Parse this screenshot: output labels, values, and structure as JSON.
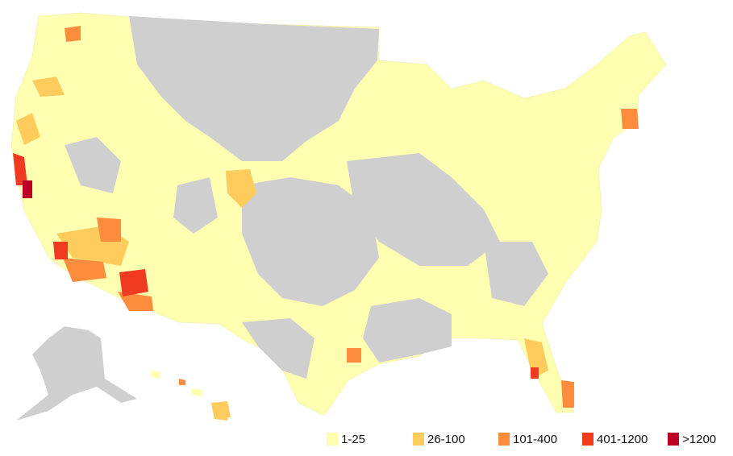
{
  "legend": {
    "items": [
      {
        "label": "1-25",
        "color": "#ffffb2"
      },
      {
        "label": "26-100",
        "color": "#fecc5c"
      },
      {
        "label": "101-400",
        "color": "#fd8d3c"
      },
      {
        "label": "401-1200",
        "color": "#f03b20"
      },
      {
        "label": ">1200",
        "color": "#bd0026"
      }
    ]
  }
}
